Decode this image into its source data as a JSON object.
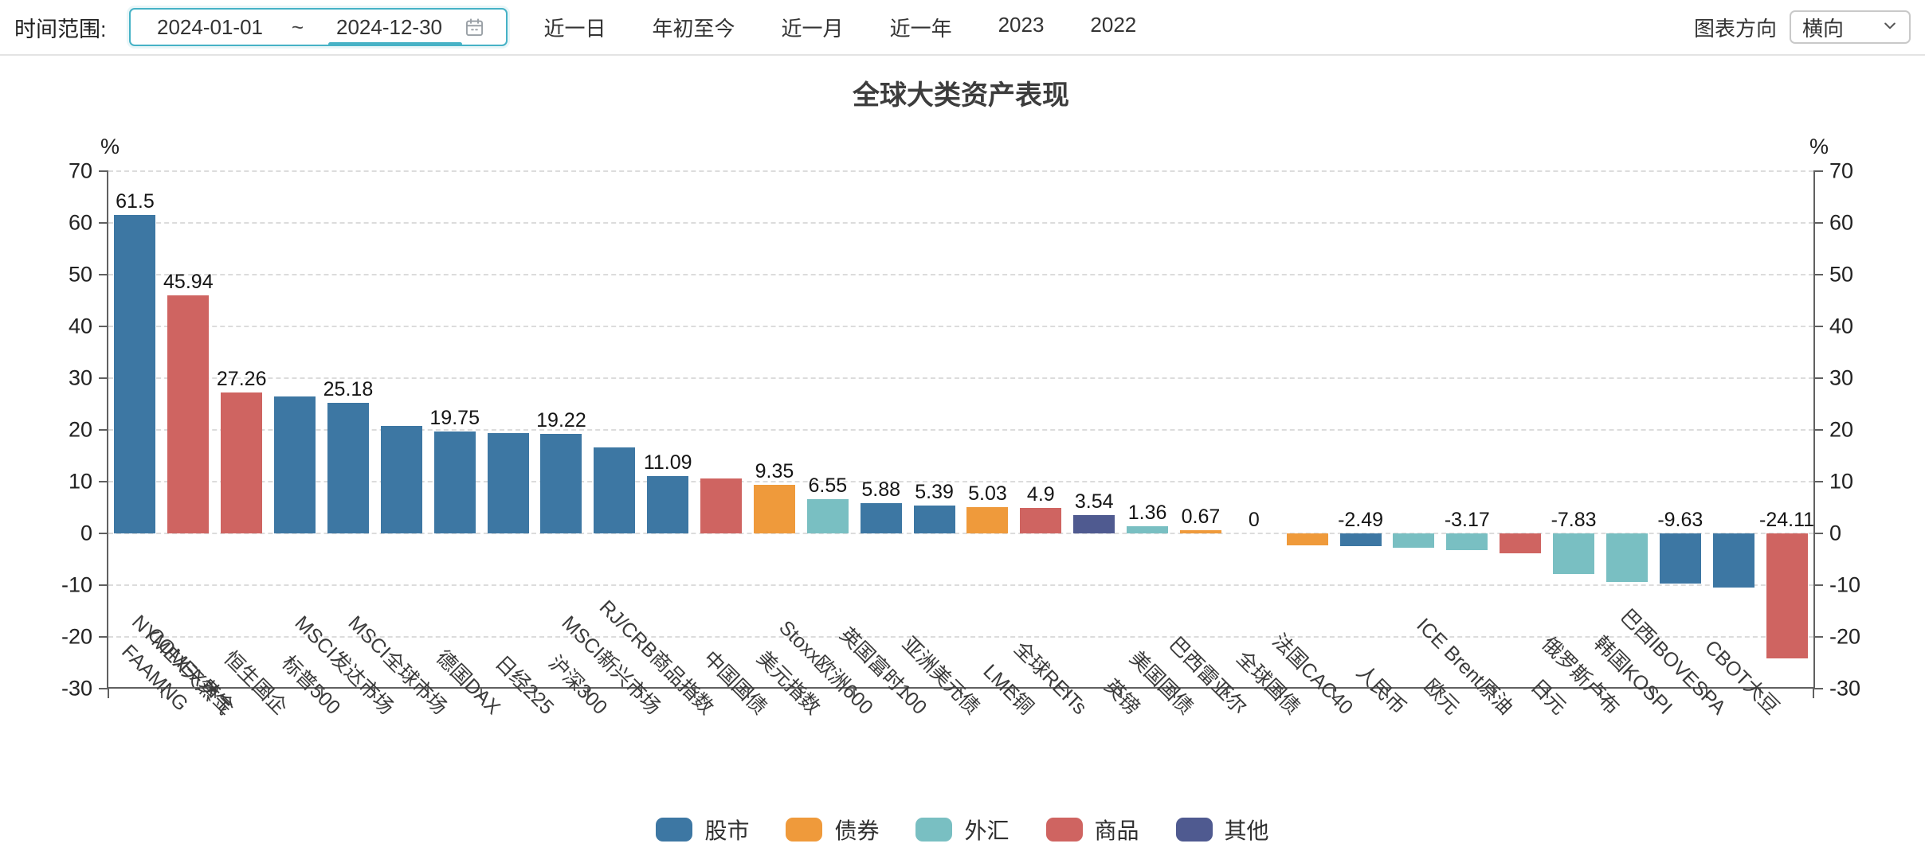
{
  "toolbar": {
    "time_range_label": "时间范围:",
    "date_start": "2024-01-01",
    "date_separator": "~",
    "date_end": "2024-12-30",
    "quick_links": [
      "近一日",
      "年初至今",
      "近一月",
      "近一年",
      "2023",
      "2022"
    ],
    "direction_label": "图表方向",
    "direction_value": "横向"
  },
  "chart_data": {
    "type": "bar",
    "title": "全球大类资产表现",
    "unit": "%",
    "ylim": [
      -30,
      70
    ],
    "yticks": [
      70,
      60,
      50,
      40,
      30,
      20,
      10,
      0,
      -10,
      -20,
      -30
    ],
    "grid": true,
    "legend_position": "bottom",
    "legend": [
      {
        "label": "股市",
        "color": "#3d77a3"
      },
      {
        "label": "债券",
        "color": "#ef9a3b"
      },
      {
        "label": "外汇",
        "color": "#79bfc2"
      },
      {
        "label": "商品",
        "color": "#cf6461"
      },
      {
        "label": "其他",
        "color": "#4f5a90"
      }
    ],
    "bars": [
      {
        "name": "FAAMNG",
        "value": 61.5,
        "label": "61.5",
        "category": "股市"
      },
      {
        "name": "NYMEX天然气",
        "value": 45.94,
        "label": "45.94",
        "category": "商品"
      },
      {
        "name": "COMEX黄金",
        "value": 27.26,
        "label": "27.26",
        "category": "商品"
      },
      {
        "name": "恒生国企",
        "value": 26.5,
        "label": "",
        "category": "股市"
      },
      {
        "name": "标普500",
        "value": 25.18,
        "label": "25.18",
        "category": "股市"
      },
      {
        "name": "MSCI发达市场",
        "value": 20.7,
        "label": "",
        "category": "股市"
      },
      {
        "name": "MSCI全球市场",
        "value": 19.75,
        "label": "19.75",
        "category": "股市"
      },
      {
        "name": "德国DAX",
        "value": 19.4,
        "label": "",
        "category": "股市"
      },
      {
        "name": "日经225",
        "value": 19.22,
        "label": "19.22",
        "category": "股市"
      },
      {
        "name": "沪深300",
        "value": 16.6,
        "label": "",
        "category": "股市"
      },
      {
        "name": "MSCI新兴市场",
        "value": 11.09,
        "label": "11.09",
        "category": "股市"
      },
      {
        "name": "RJ/CRB商品指数",
        "value": 10.6,
        "label": "",
        "category": "商品"
      },
      {
        "name": "中国国债",
        "value": 9.35,
        "label": "9.35",
        "category": "债券"
      },
      {
        "name": "美元指数",
        "value": 6.55,
        "label": "6.55",
        "category": "外汇"
      },
      {
        "name": "Stoxx欧洲600",
        "value": 5.88,
        "label": "5.88",
        "category": "股市"
      },
      {
        "name": "英国富时100",
        "value": 5.39,
        "label": "5.39",
        "category": "股市"
      },
      {
        "name": "亚洲美元债",
        "value": 5.03,
        "label": "5.03",
        "category": "债券"
      },
      {
        "name": "LME铜",
        "value": 4.9,
        "label": "4.9",
        "category": "商品"
      },
      {
        "name": "全球REITs",
        "value": 3.54,
        "label": "3.54",
        "category": "其他"
      },
      {
        "name": "英镑",
        "value": 1.36,
        "label": "1.36",
        "category": "外汇"
      },
      {
        "name": "美国国债",
        "value": 0.67,
        "label": "0.67",
        "category": "债券"
      },
      {
        "name": "巴西雷亚尔",
        "value": 0,
        "label": "0",
        "category": "外汇"
      },
      {
        "name": "全球国债",
        "value": -2.3,
        "label": "",
        "category": "债券"
      },
      {
        "name": "法国CAC40",
        "value": -2.49,
        "label": "-2.49",
        "category": "股市"
      },
      {
        "name": "人民币",
        "value": -2.8,
        "label": "",
        "category": "外汇"
      },
      {
        "name": "欧元",
        "value": -3.17,
        "label": "-3.17",
        "category": "外汇"
      },
      {
        "name": "ICE Brent原油",
        "value": -3.8,
        "label": "",
        "category": "商品"
      },
      {
        "name": "日元",
        "value": -7.83,
        "label": "-7.83",
        "category": "外汇"
      },
      {
        "name": "俄罗斯卢布",
        "value": -9.4,
        "label": "",
        "category": "外汇"
      },
      {
        "name": "韩国KOSPI",
        "value": -9.63,
        "label": "-9.63",
        "category": "股市"
      },
      {
        "name": "巴西IBOVESPA",
        "value": -10.4,
        "label": "",
        "category": "股市"
      },
      {
        "name": "CBOT大豆",
        "value": -24.11,
        "label": "-24.11",
        "category": "商品"
      }
    ]
  }
}
